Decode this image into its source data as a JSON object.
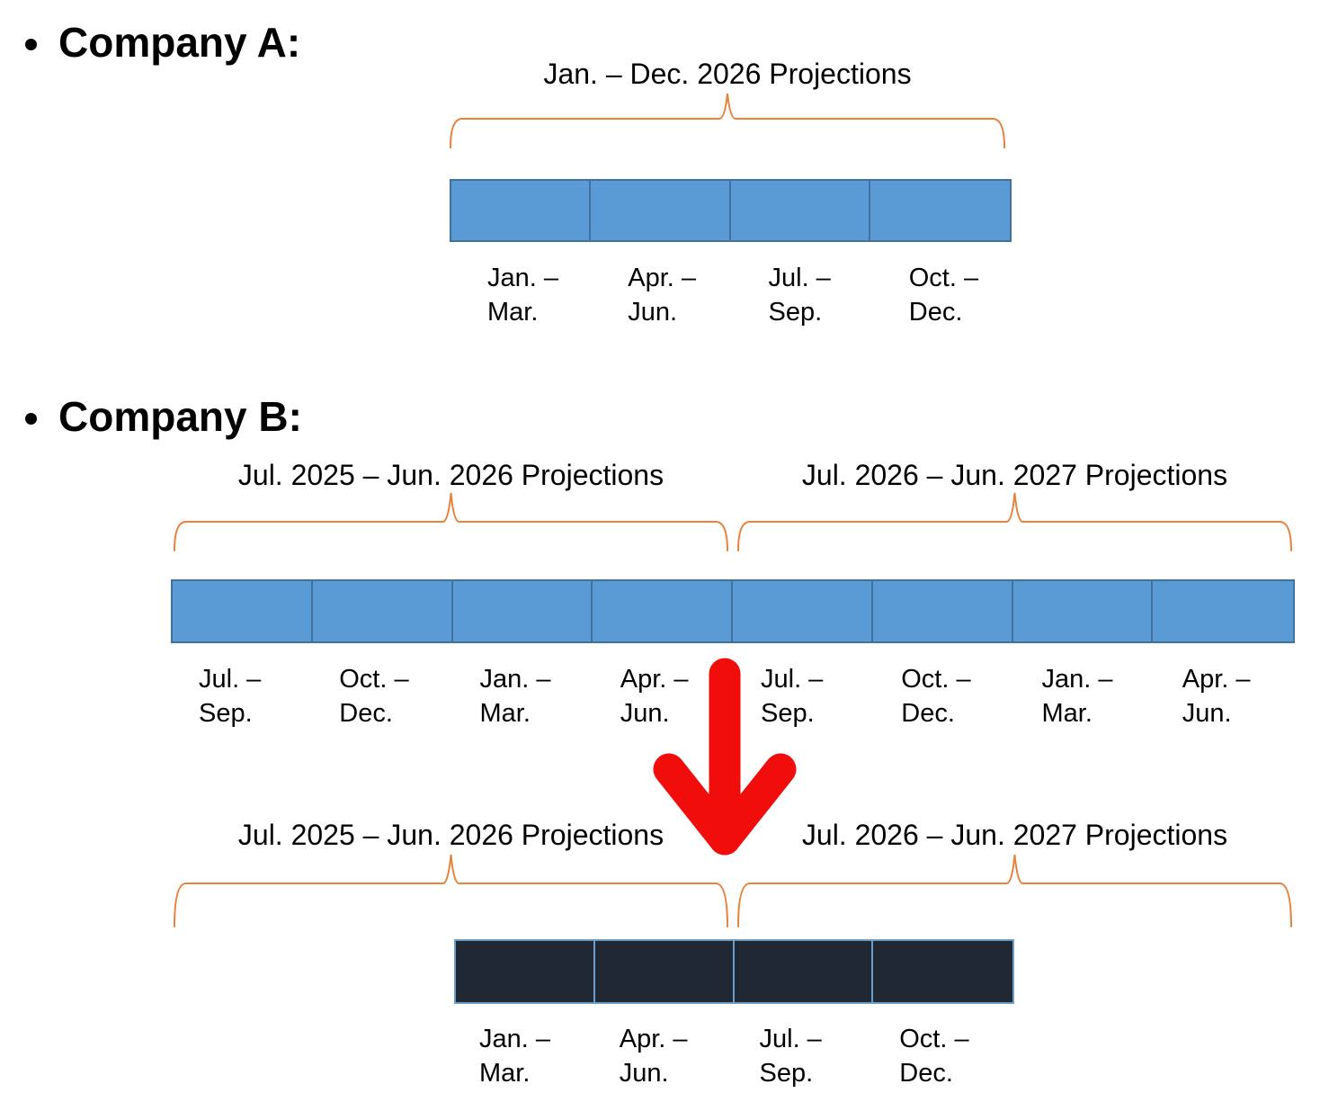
{
  "colors": {
    "bar_fill": "#5B9BD5",
    "bar_border": "#41719C",
    "dark_bar_fill": "#1F2833",
    "dark_bar_border": "#6D9EC8",
    "brace": "#E8823C",
    "arrow": "#F20D0D",
    "text": "#000000"
  },
  "company_a": {
    "heading": "Company A:",
    "brace_label": "Jan. – Dec. 2026 Projections",
    "segments": [
      {
        "line1": "Jan. –",
        "line2": "Mar."
      },
      {
        "line1": "Apr. –",
        "line2": "Jun."
      },
      {
        "line1": "Jul. –",
        "line2": "Sep."
      },
      {
        "line1": "Oct. –",
        "line2": "Dec."
      }
    ]
  },
  "company_b": {
    "heading": "Company B:",
    "top_brace_labels": [
      "Jul. 2025 – Jun. 2026 Projections",
      "Jul. 2026 – Jun. 2027 Projections"
    ],
    "segments": [
      {
        "line1": "Jul. –",
        "line2": "Sep."
      },
      {
        "line1": "Oct. –",
        "line2": "Dec."
      },
      {
        "line1": "Jan. –",
        "line2": "Mar."
      },
      {
        "line1": "Apr. –",
        "line2": "Jun."
      },
      {
        "line1": "Jul. –",
        "line2": "Sep."
      },
      {
        "line1": "Oct. –",
        "line2": "Dec."
      },
      {
        "line1": "Jan. –",
        "line2": "Mar."
      },
      {
        "line1": "Apr. –",
        "line2": "Jun."
      }
    ],
    "bottom_brace_labels": [
      "Jul. 2025 – Jun. 2026 Projections",
      "Jul. 2026 – Jun. 2027 Projections"
    ],
    "result_segments": [
      {
        "line1": "Jan. –",
        "line2": "Mar."
      },
      {
        "line1": "Apr. –",
        "line2": "Jun."
      },
      {
        "line1": "Jul. –",
        "line2": "Sep."
      },
      {
        "line1": "Oct. –",
        "line2": "Dec."
      }
    ]
  }
}
